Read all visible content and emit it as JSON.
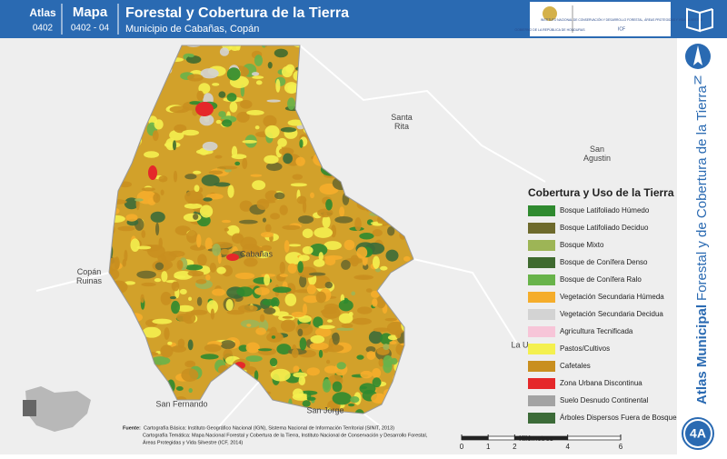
{
  "header": {
    "atlas_label": "Atlas",
    "atlas_code": "0402",
    "map_label": "Mapa",
    "map_code": "0402 - 04",
    "title": "Forestal y Cobertura de la Tierra",
    "subtitle": "Municipio de Cabañas, Copán",
    "logo_left": "GOBIERNO DE LA REPÚBLICA DE HONDURAS",
    "logo_right": "INSTITUTO NACIONAL DE CONSERVACIÓN Y DESARROLLO FORESTAL, ÁREAS PROTEGIDAS Y VIDA SILVESTRE",
    "logo_right_short": "ICF"
  },
  "side": {
    "north": "N",
    "title_bold": "Atlas Municipal",
    "title_rest": "Forestal y de Cobertura de la Tierra",
    "badge": "4A"
  },
  "places": [
    {
      "label": "Santa Rita"
    },
    {
      "label": "San Agustin"
    },
    {
      "label": "Copán Ruinas"
    },
    {
      "label": "San Fernando"
    },
    {
      "label": "San Jorge"
    },
    {
      "label": "Cabañas"
    },
    {
      "label": "La U"
    }
  ],
  "legend": {
    "title": "Cobertura y Uso de la Tierra",
    "items": [
      {
        "label": "Bosque Latifoliado Húmedo",
        "color": "#2f8a2f"
      },
      {
        "label": "Bosque Latifoliado Deciduo",
        "color": "#6e6a2c"
      },
      {
        "label": "Bosque Mixto",
        "color": "#9db556"
      },
      {
        "label": "Bosque de Conífera Denso",
        "color": "#3f6a2f"
      },
      {
        "label": "Bosque de Conífera Ralo",
        "color": "#68b34a"
      },
      {
        "label": "Vegetación Secundaria Húmeda",
        "color": "#f5ad2b"
      },
      {
        "label": "Vegetación Secundaria Decidua",
        "color": "#d3d3d3"
      },
      {
        "label": "Agricultura Tecnificada",
        "color": "#f7c5d8"
      },
      {
        "label": "Pastos/Cultivos",
        "color": "#f4f04f"
      },
      {
        "label": "Cafetales",
        "color": "#c98f1f"
      },
      {
        "label": "Zona Urbana Discontinua",
        "color": "#e5282a"
      },
      {
        "label": "Suelo Desnudo Continental",
        "color": "#a3a3a3"
      },
      {
        "label": "Árboles Dispersos Fuera de Bosque",
        "color": "#3c6b38"
      }
    ]
  },
  "source": {
    "label": "Fuente:",
    "lines": [
      "Cartografía Básica: Instituto Geográfico Nacional (IGN), Sistema Nacional de Información Territorial (SINIT, 2013)",
      "Cartografía Temática: Mapa Nacional Forestal y Cobertura de la Tierra, Instituto Nacional de Conservación y Desarrollo Forestal,",
      "Áreas Protegidas y Vida Silvestre (ICF, 2014)"
    ]
  },
  "scale": {
    "ticks": [
      0,
      1,
      2,
      4,
      6
    ],
    "unit": "Kilómetros"
  }
}
